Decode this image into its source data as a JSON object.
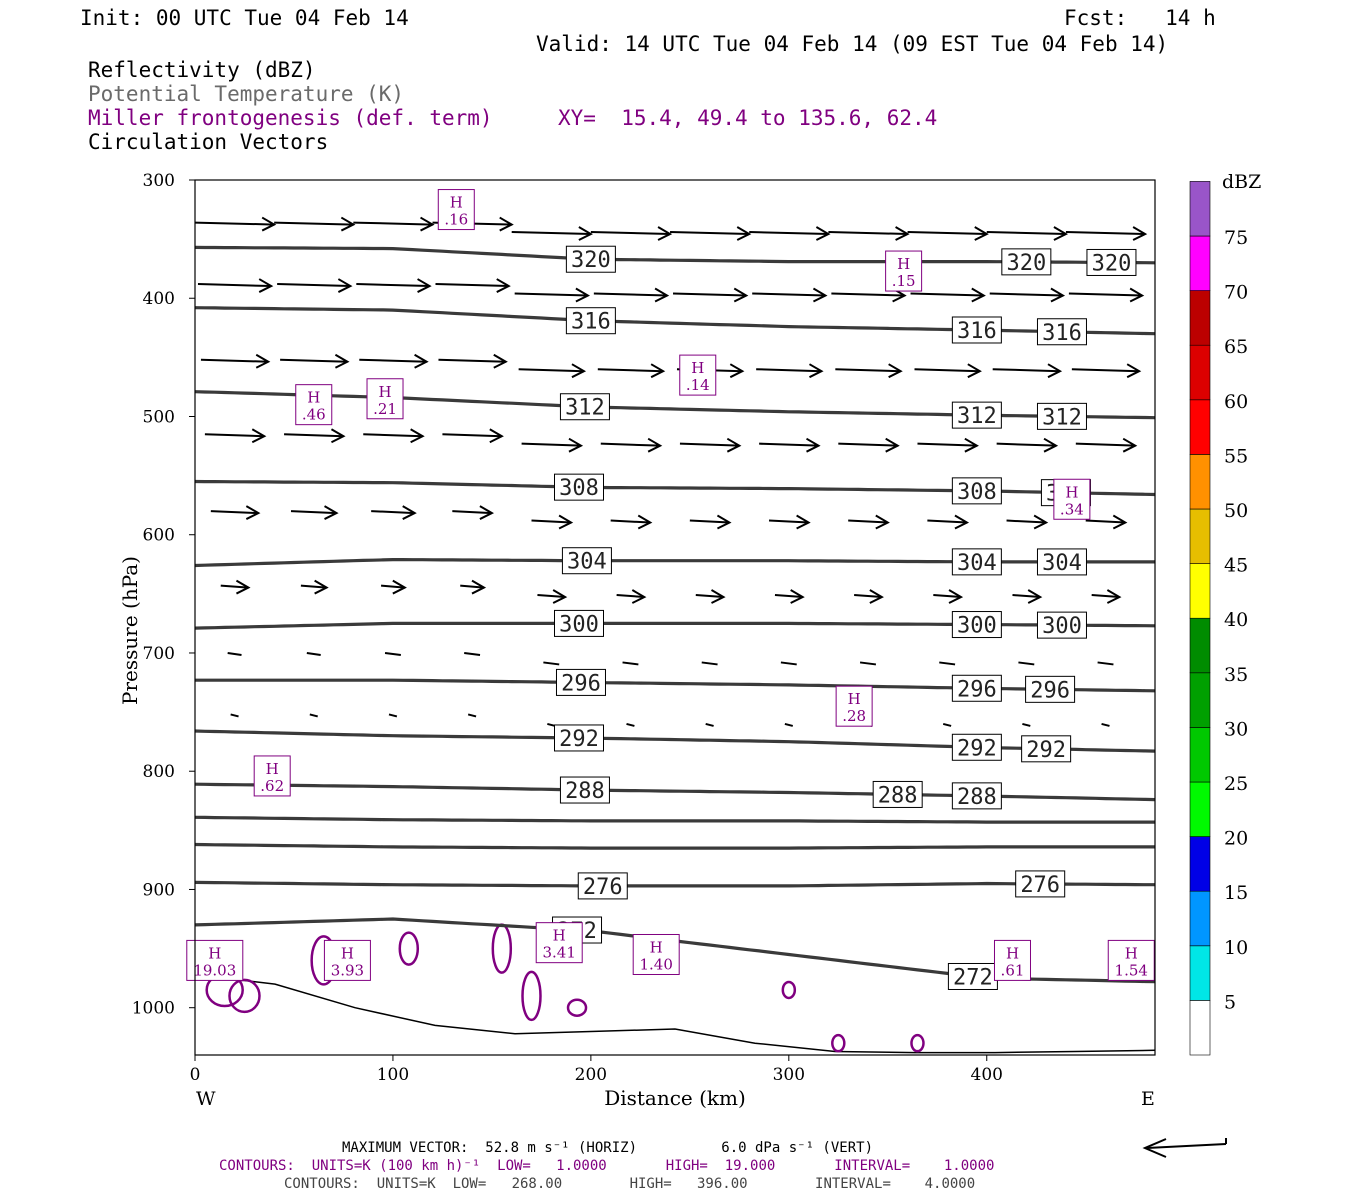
{
  "header": {
    "init": "Init: 00 UTC Tue 04 Feb 14",
    "fcst": "Fcst:   14 h",
    "valid": "Valid: 14 UTC Tue 04 Feb 14 (09 EST Tue 04 Feb 14)",
    "field_reflectivity": "Reflectivity (dBZ)",
    "field_theta": "Potential Temperature (K)",
    "field_miller": "Miller frontogenesis (def. term)",
    "xy_label": "XY=  15.4, 49.4 to 135.6, 62.4",
    "field_vectors": "Circulation Vectors"
  },
  "colors": {
    "theta_contour": "#3a3a3a",
    "frontogenesis": "#800080",
    "terrain": "#000000",
    "vector": "#000000"
  },
  "chart_data": {
    "type": "cross-section",
    "xlabel": "Distance (km)",
    "ylabel": "Pressure (hPa)",
    "xlim": [
      0,
      485
    ],
    "ylim": [
      1040,
      300
    ],
    "x_ticks": [
      0,
      100,
      200,
      300,
      400
    ],
    "y_ticks": [
      300,
      400,
      500,
      600,
      700,
      800,
      900,
      1000
    ],
    "x_end_labels": {
      "left": "W",
      "right": "E"
    },
    "theta_contours": [
      {
        "label": "320",
        "x": [
          0,
          100,
          200,
          300,
          400,
          485
        ],
        "p": [
          357,
          358,
          367,
          369,
          369,
          370
        ],
        "label_at": [
          200,
          420,
          463
        ]
      },
      {
        "label": "316",
        "x": [
          0,
          100,
          200,
          300,
          400,
          485
        ],
        "p": [
          408,
          410,
          419,
          424,
          427,
          430
        ],
        "label_at": [
          200,
          395,
          438
        ]
      },
      {
        "label": "312",
        "x": [
          0,
          100,
          200,
          300,
          400,
          485
        ],
        "p": [
          479,
          484,
          492,
          496,
          499,
          501
        ],
        "label_at": [
          197,
          395,
          438
        ]
      },
      {
        "label": "308",
        "x": [
          0,
          100,
          200,
          300,
          400,
          485
        ],
        "p": [
          555,
          556,
          560,
          561,
          563,
          566
        ],
        "label_at": [
          194,
          395,
          440
        ]
      },
      {
        "label": "304",
        "x": [
          0,
          100,
          200,
          300,
          400,
          485
        ],
        "p": [
          626,
          621,
          622,
          622,
          623,
          623
        ],
        "label_at": [
          198,
          395,
          438
        ]
      },
      {
        "label": "300",
        "x": [
          0,
          100,
          200,
          300,
          400,
          485
        ],
        "p": [
          679,
          675,
          675,
          675,
          676,
          677
        ],
        "label_at": [
          194,
          395,
          438
        ]
      },
      {
        "label": "296",
        "x": [
          0,
          100,
          200,
          300,
          400,
          485
        ],
        "p": [
          723,
          723,
          725,
          727,
          730,
          732
        ],
        "label_at": [
          195,
          395,
          432
        ]
      },
      {
        "label": "292",
        "x": [
          0,
          100,
          200,
          300,
          400,
          485
        ],
        "p": [
          766,
          770,
          772,
          775,
          780,
          783
        ],
        "label_at": [
          194,
          395,
          430
        ]
      },
      {
        "label": "288",
        "x": [
          0,
          100,
          200,
          300,
          400,
          485
        ],
        "p": [
          811,
          813,
          816,
          818,
          821,
          824
        ],
        "label_at": [
          197,
          355,
          395
        ]
      },
      {
        "label": "",
        "x": [
          0,
          100,
          200,
          300,
          400,
          485
        ],
        "p": [
          839,
          841,
          842,
          842,
          843,
          843
        ],
        "label_at": []
      },
      {
        "label": "",
        "x": [
          0,
          100,
          200,
          300,
          400,
          485
        ],
        "p": [
          862,
          864,
          865,
          865,
          864,
          864
        ],
        "label_at": []
      },
      {
        "label": "276",
        "x": [
          0,
          100,
          200,
          300,
          400,
          485
        ],
        "p": [
          894,
          896,
          897,
          897,
          895,
          896
        ],
        "label_at": [
          206,
          427
        ]
      },
      {
        "label": "272",
        "x": [
          0,
          100,
          200,
          300,
          400,
          485
        ],
        "p": [
          930,
          925,
          935,
          955,
          975,
          978
        ],
        "label_at": [
          193,
          393
        ]
      }
    ],
    "frontogenesis_maxima": [
      {
        "label": "H",
        "value": ".16",
        "x": 132,
        "p": 325
      },
      {
        "label": "H",
        "value": ".15",
        "x": 358,
        "p": 377
      },
      {
        "label": "H",
        "value": ".14",
        "x": 254,
        "p": 465
      },
      {
        "label": "H",
        "value": ".46",
        "x": 60,
        "p": 490
      },
      {
        "label": "H",
        "value": ".21",
        "x": 96,
        "p": 485
      },
      {
        "label": "H",
        "value": ".34",
        "x": 443,
        "p": 570
      },
      {
        "label": "H",
        "value": ".28",
        "x": 333,
        "p": 745
      },
      {
        "label": "H",
        "value": ".62",
        "x": 39,
        "p": 804
      },
      {
        "label": "H",
        "value": "3.41",
        "x": 184,
        "p": 945
      },
      {
        "label": "H",
        "value": "19.03",
        "x": 10,
        "p": 960
      },
      {
        "label": "H",
        "value": "3.93",
        "x": 77,
        "p": 960
      },
      {
        "label": "H",
        "value": "1.40",
        "x": 233,
        "p": 955
      },
      {
        "label": "H",
        "value": ".61",
        "x": 413,
        "p": 960
      },
      {
        "label": "H",
        "value": "1.54",
        "x": 473,
        "p": 960
      }
    ],
    "vector_rows": [
      {
        "p": 336,
        "dx": [
          40,
          40,
          40,
          40,
          40,
          40,
          40,
          40,
          40,
          40,
          40,
          40
        ]
      },
      {
        "p": 388,
        "dx": [
          37,
          37,
          37,
          37,
          37,
          37,
          37,
          37,
          37,
          37,
          37,
          37
        ]
      },
      {
        "p": 452,
        "dx": [
          34,
          34,
          34,
          34,
          33,
          33,
          33,
          33,
          33,
          33,
          34,
          34
        ]
      },
      {
        "p": 515,
        "dx": [
          30,
          30,
          30,
          30,
          30,
          30,
          30,
          30,
          30,
          30,
          30,
          30
        ]
      },
      {
        "p": 580,
        "dx": [
          24,
          23,
          22,
          20,
          20,
          20,
          20,
          20,
          20,
          20,
          20,
          20
        ]
      },
      {
        "p": 643,
        "dx": [
          14,
          13,
          12,
          12,
          14,
          14,
          14,
          14,
          14,
          14,
          14,
          14
        ]
      },
      {
        "p": 700,
        "dx": [
          7,
          7,
          8,
          8,
          8,
          8,
          8,
          8,
          8,
          8,
          8,
          8
        ]
      },
      {
        "p": 752,
        "dx": [
          4,
          4,
          4,
          4,
          4,
          4,
          4,
          4,
          4,
          4,
          4,
          4
        ]
      }
    ],
    "terrain_surface_p": [
      972,
      980,
      1000,
      1015,
      1022,
      1020,
      1018,
      1030,
      1037,
      1038,
      1038,
      1037,
      1036
    ]
  },
  "colorbar": {
    "title": "dBZ",
    "levels": [
      "5",
      "10",
      "15",
      "20",
      "25",
      "30",
      "35",
      "40",
      "45",
      "50",
      "55",
      "60",
      "65",
      "70",
      "75"
    ],
    "colors": [
      "#ffffff",
      "#00e6e6",
      "#0096ff",
      "#0000e6",
      "#00fa00",
      "#00c800",
      "#00a000",
      "#008c00",
      "#ffff00",
      "#e6be00",
      "#ff9100",
      "#ff0000",
      "#dc0000",
      "#bc0000",
      "#ff00ff",
      "#9955c9"
    ]
  },
  "footer": {
    "max_vector": "MAXIMUM VECTOR:  52.8 m s⁻¹ (HORIZ)          6.0 dPa s⁻¹ (VERT)",
    "contours_purple": "CONTOURS:  UNITS=K (100 km h)⁻¹  LOW=   1.0000       HIGH=  19.000       INTERVAL=    1.0000",
    "contours_black": "CONTOURS:  UNITS=K  LOW=   268.00        HIGH=   396.00        INTERVAL=    4.0000"
  }
}
